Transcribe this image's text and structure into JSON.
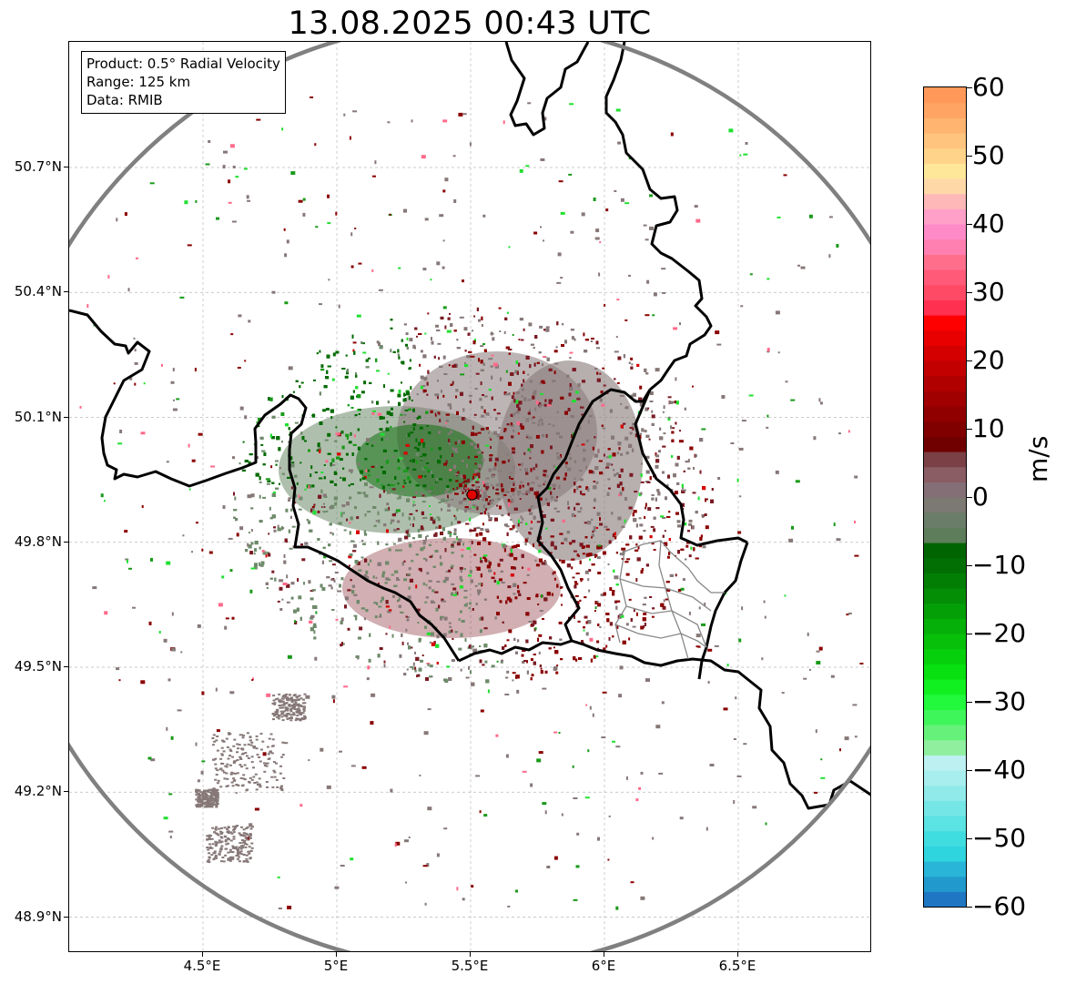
{
  "title": "13.08.2025 00:43 UTC",
  "info": {
    "product": "Product: 0.5° Radial Velocity",
    "range": "Range: 125 km",
    "source": "Data: RMIB"
  },
  "axes": {
    "lon_ticks": [
      {
        "label": "4.5°E",
        "value": 4.5
      },
      {
        "label": "5°E",
        "value": 5.0
      },
      {
        "label": "5.5°E",
        "value": 5.5
      },
      {
        "label": "6°E",
        "value": 6.0
      },
      {
        "label": "6.5°E",
        "value": 6.5
      }
    ],
    "lat_ticks": [
      {
        "label": "50.7°N",
        "value": 50.7
      },
      {
        "label": "50.4°N",
        "value": 50.4
      },
      {
        "label": "50.1°N",
        "value": 50.1
      },
      {
        "label": "49.8°N",
        "value": 49.8
      },
      {
        "label": "49.5°N",
        "value": 49.5
      },
      {
        "label": "49.2°N",
        "value": 49.2
      },
      {
        "label": "48.9°N",
        "value": 48.9
      }
    ],
    "lon_range": [
      4.0,
      7.0
    ],
    "lat_range": [
      48.8,
      51.0
    ]
  },
  "radar_site": {
    "lon": 5.505,
    "lat": 49.914,
    "color": "#e00000"
  },
  "range_ring_color": "#808080",
  "colorbar": {
    "unit": "m/s",
    "min": -60,
    "max": 60,
    "ticks": [
      {
        "label": "60",
        "value": 60
      },
      {
        "label": "50",
        "value": 50
      },
      {
        "label": "40",
        "value": 40
      },
      {
        "label": "30",
        "value": 30
      },
      {
        "label": "20",
        "value": 20
      },
      {
        "label": "10",
        "value": 10
      },
      {
        "label": "0",
        "value": 0
      },
      {
        "label": "−10",
        "value": -10
      },
      {
        "label": "−20",
        "value": -20
      },
      {
        "label": "−30",
        "value": -30
      },
      {
        "label": "−40",
        "value": -40
      },
      {
        "label": "−50",
        "value": -50
      },
      {
        "label": "−60",
        "value": -60
      }
    ],
    "bands": [
      "#1f77c4",
      "#2199cc",
      "#29b5d8",
      "#2ed4de",
      "#40dde0",
      "#5be2e2",
      "#75e6e6",
      "#90eaea",
      "#a8eeee",
      "#bdf0f0",
      "#8fef9f",
      "#66f27a",
      "#3ff65a",
      "#22f83c",
      "#10f020",
      "#08e010",
      "#06d00c",
      "#06c00a",
      "#05b008",
      "#049f07",
      "#038e06",
      "#027e05",
      "#016f04",
      "#006400",
      "#5e7d5a",
      "#6a7d68",
      "#7c7872",
      "#846f76",
      "#8a5c64",
      "#7a4045",
      "#700000",
      "#800000",
      "#900000",
      "#a00000",
      "#b00000",
      "#c20000",
      "#d40000",
      "#e80000",
      "#ff0000",
      "#ff3050",
      "#ff4a66",
      "#ff5a78",
      "#ff6f8c",
      "#ff80b0",
      "#ff8ac8",
      "#ffa0c8",
      "#ffb8b8",
      "#ffd8a8",
      "#ffe79a",
      "#ffd48a",
      "#ffc47e",
      "#ffb470",
      "#ffa462",
      "#ff9858"
    ]
  },
  "palette": {
    "green_dark": "#006a00",
    "green_mid": "#1a9a1a",
    "green_gray": "#6e8a6a",
    "gray_brown": "#877878",
    "maroon": "#7a1a22",
    "dark_red": "#8a0000",
    "red": "#d80000",
    "pink": "#ff6a8a",
    "bright_green": "#20e030"
  }
}
